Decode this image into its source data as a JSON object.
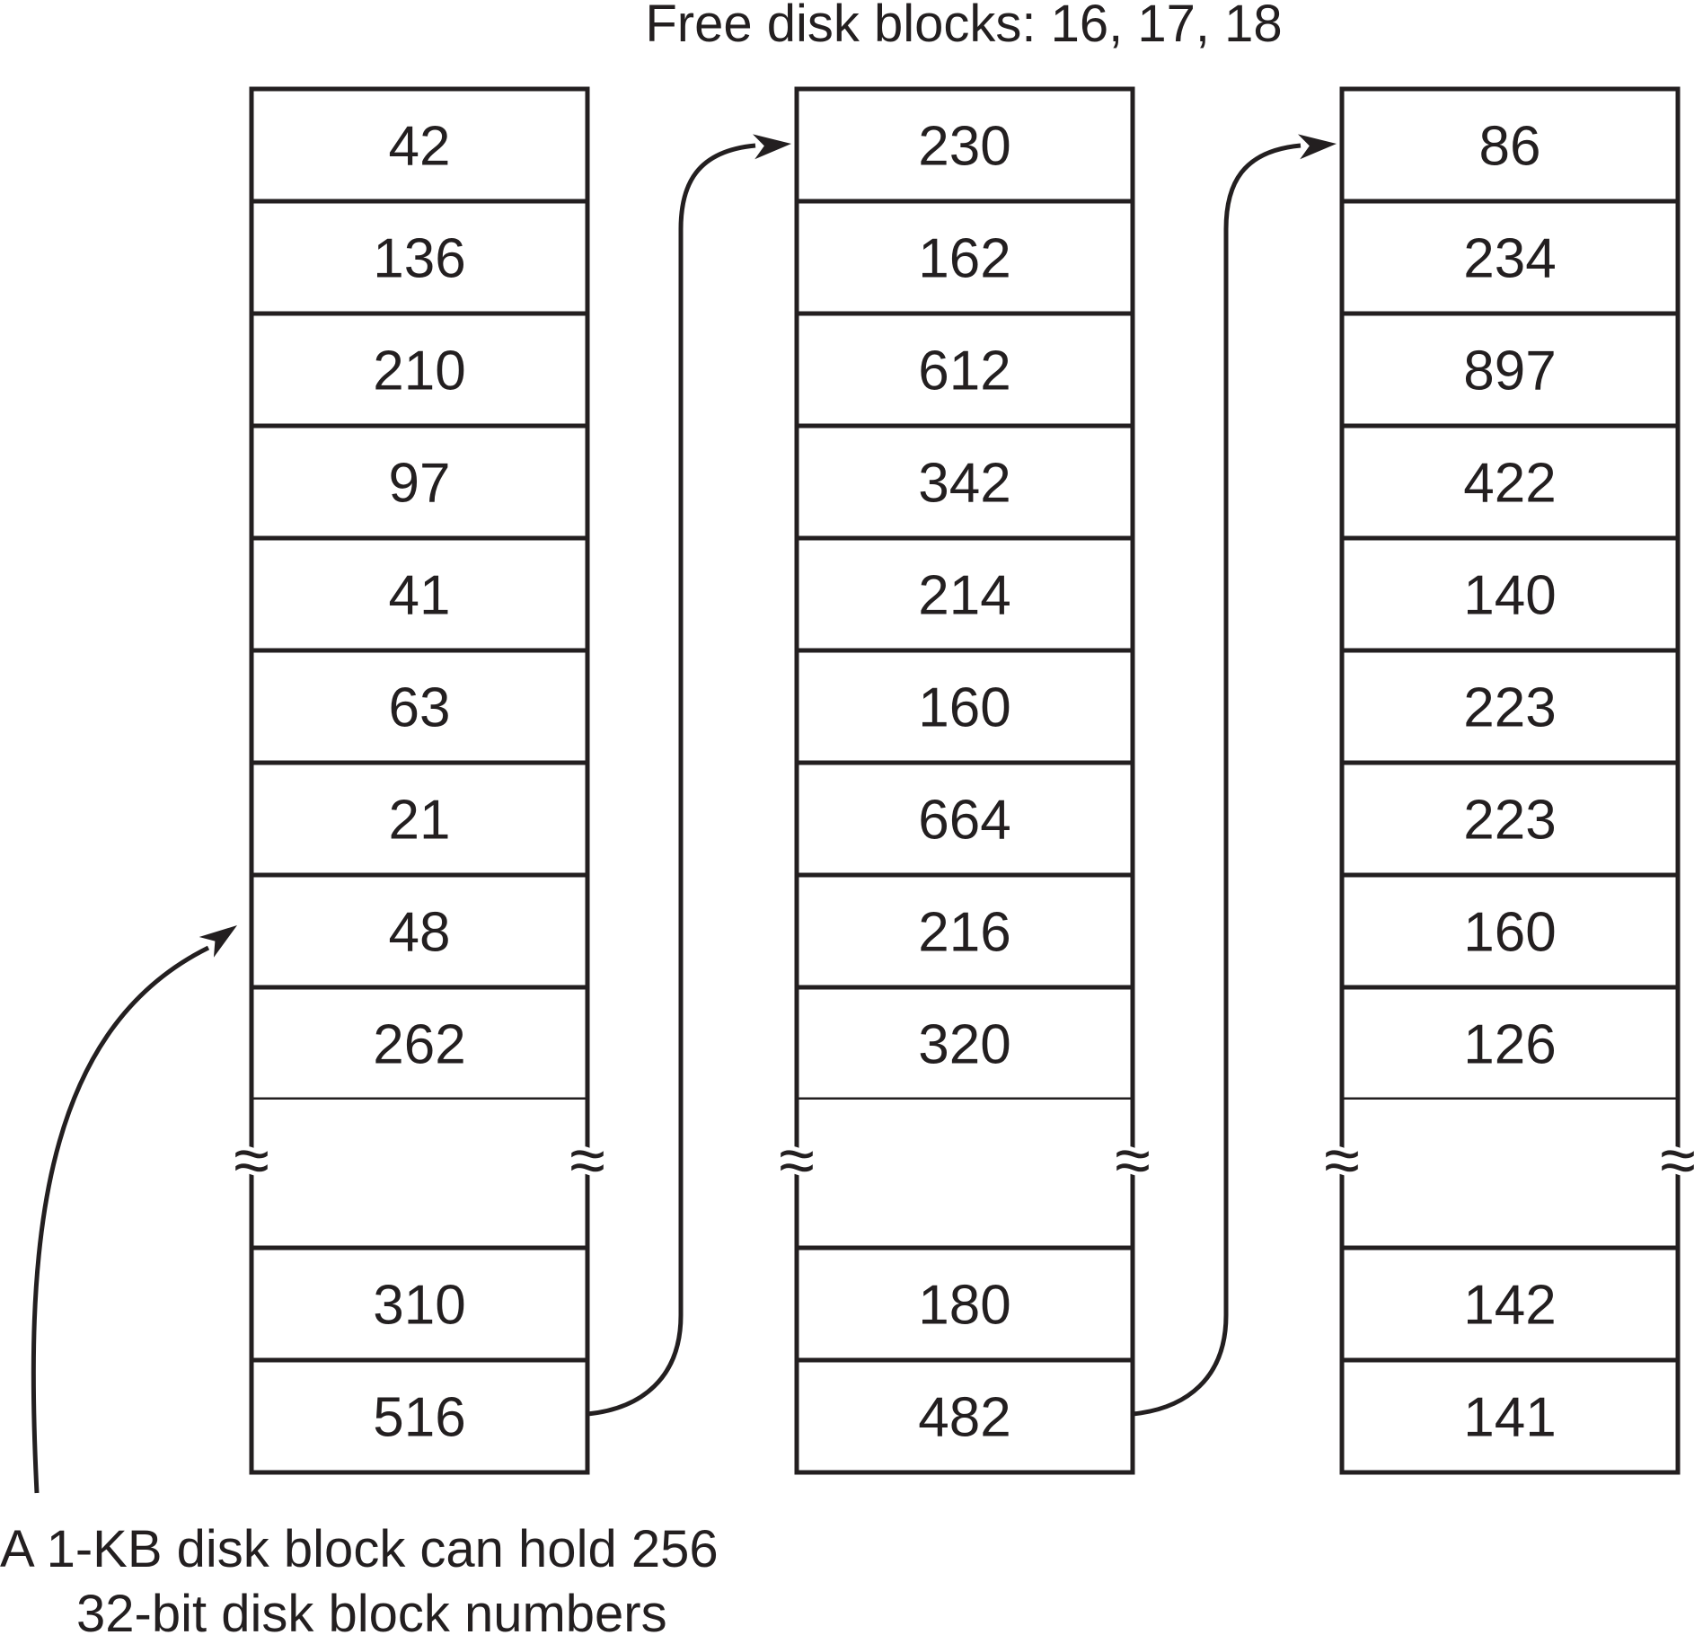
{
  "title": "Free disk blocks: 16, 17, 18",
  "caption": {
    "line1": "A 1-KB disk block can hold 256",
    "line2": "32-bit disk block numbers"
  },
  "columns": [
    {
      "top": [
        "42",
        "136",
        "210",
        "97",
        "41",
        "63",
        "21",
        "48",
        "262"
      ],
      "bottom": [
        "310",
        "516"
      ]
    },
    {
      "top": [
        "230",
        "162",
        "612",
        "342",
        "214",
        "160",
        "664",
        "216",
        "320"
      ],
      "bottom": [
        "180",
        "482"
      ]
    },
    {
      "top": [
        "86",
        "234",
        "897",
        "422",
        "140",
        "223",
        "223",
        "160",
        "126"
      ],
      "bottom": [
        "142",
        "141"
      ]
    }
  ],
  "gap_symbol": "≈"
}
